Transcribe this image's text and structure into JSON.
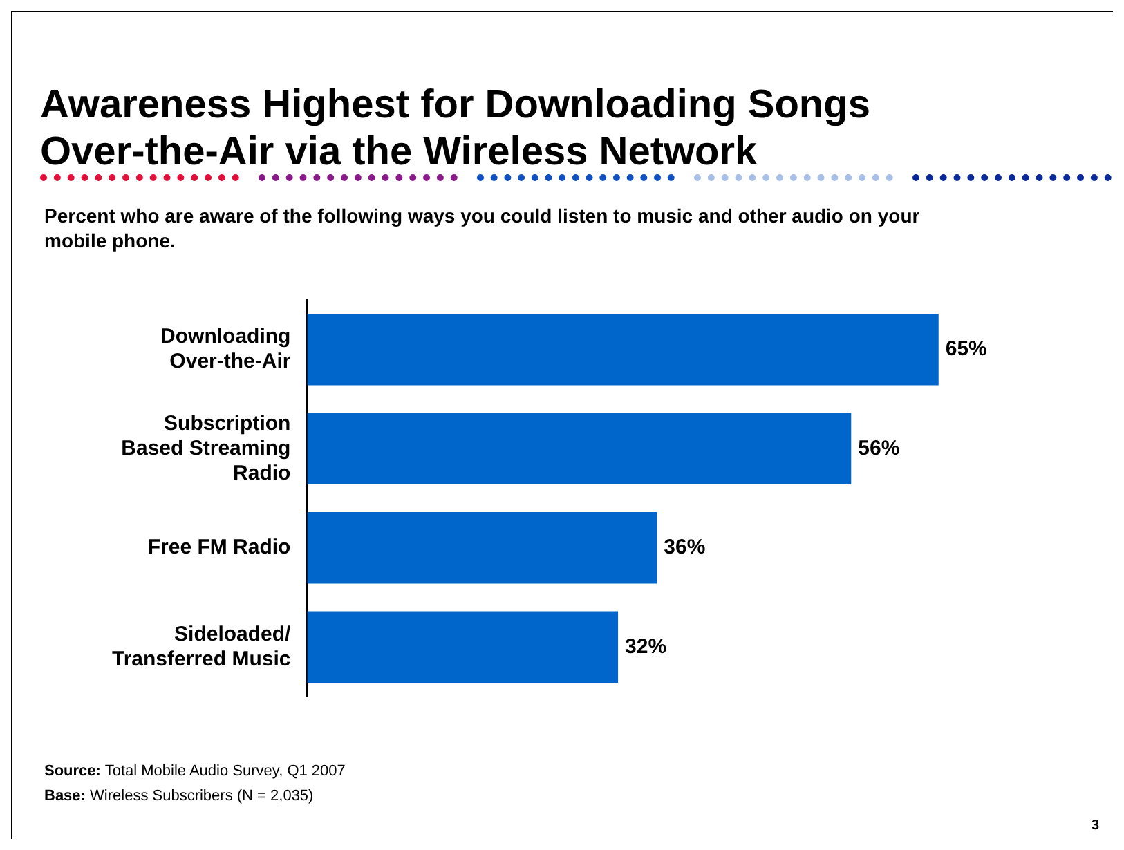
{
  "chart_data": {
    "type": "bar",
    "orientation": "horizontal",
    "title": "Awareness Highest for Downloading Songs Over-the-Air via the Wireless Network",
    "subtitle": "Percent who are aware of the following ways you could listen to music and other audio on your mobile phone.",
    "categories": [
      "Downloading Over-the-Air",
      "Subscription Based Streaming Radio",
      "Free FM Radio",
      "Sideloaded/ Transferred Music"
    ],
    "values": [
      65,
      56,
      36,
      32
    ],
    "color": "#0066cc",
    "value_labels": [
      "65%",
      "56%",
      "36%",
      "32%"
    ],
    "legend": false,
    "annotations": [
      "Source:  Total Mobile Audio Survey,  Q1 2007",
      "Base:  Wireless Subscribers (N = 2,035)",
      "3"
    ]
  }
}
